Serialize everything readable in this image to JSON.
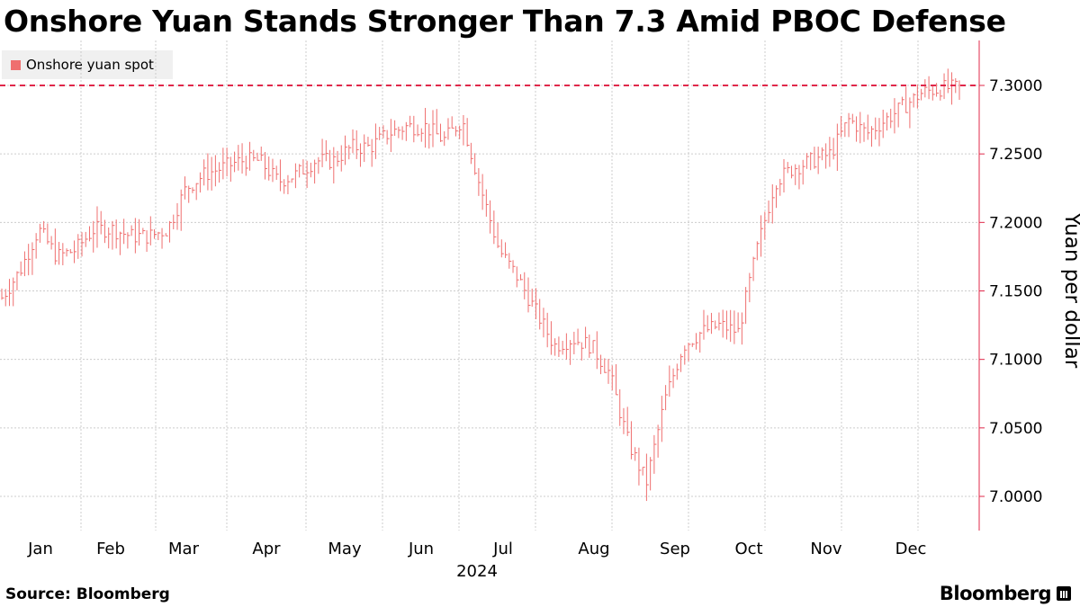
{
  "title": "Onshore Yuan Stands Stronger Than 7.3 Amid PBOC Defense",
  "legend_label": "Onshore yuan spot",
  "source": "Source: Bloomberg",
  "brand": "Bloomberg",
  "colors": {
    "series": "#ef6f6f",
    "reference": "#e0284a",
    "grid": "#cccccc",
    "axis": "#e0284a"
  },
  "chart_data": {
    "type": "ohlc",
    "title": "Onshore Yuan Stands Stronger Than 7.3 Amid PBOC Defense",
    "ylabel": "Yuan per dollar",
    "xlabel": "2024",
    "ylim": [
      6.975,
      7.325
    ],
    "yticks": [
      7.0,
      7.05,
      7.1,
      7.15,
      7.2,
      7.25,
      7.3
    ],
    "ytick_labels": [
      "7.0000",
      "7.0500",
      "7.1000",
      "7.1500",
      "7.2000",
      "7.2500",
      "7.3000"
    ],
    "x_months": [
      "Jan",
      "Feb",
      "Mar",
      "Apr",
      "May",
      "Jun",
      "Jul",
      "Aug",
      "Sep",
      "Oct",
      "Nov",
      "Dec"
    ],
    "reference_line": 7.3,
    "grid": true,
    "legend_position": "top-left",
    "series": [
      {
        "name": "Onshore yuan spot",
        "weekly_close": [
          7.145,
          7.165,
          7.195,
          7.175,
          7.18,
          7.195,
          7.195,
          7.19,
          7.19,
          7.195,
          7.225,
          7.235,
          7.24,
          7.245,
          7.245,
          7.23,
          7.235,
          7.245,
          7.245,
          7.255,
          7.255,
          7.265,
          7.27,
          7.27,
          7.26,
          7.275,
          7.225,
          7.18,
          7.16,
          7.135,
          7.11,
          7.115,
          7.11,
          7.09,
          7.04,
          7.01,
          7.07,
          7.11,
          7.12,
          7.125,
          7.12,
          7.18,
          7.23,
          7.24,
          7.245,
          7.25,
          7.275,
          7.265,
          7.275,
          7.285,
          7.295,
          7.298,
          7.298
        ]
      }
    ]
  }
}
